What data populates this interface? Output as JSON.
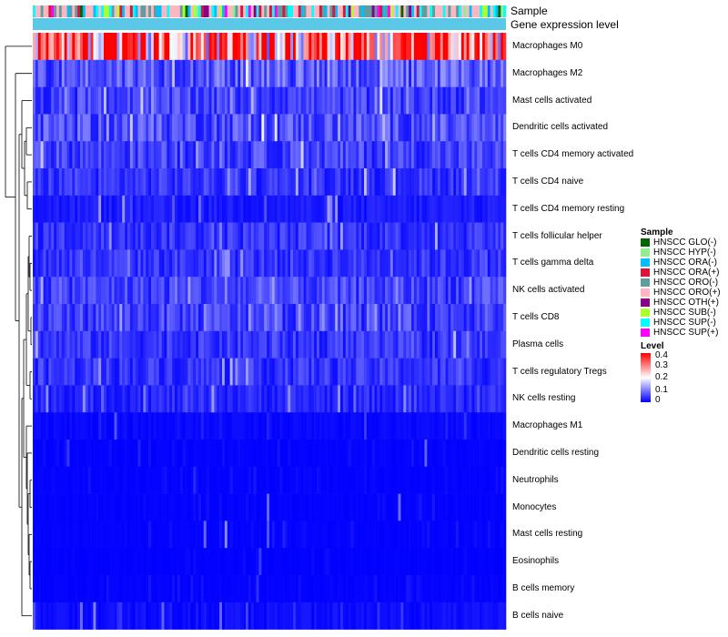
{
  "chart_data": {
    "type": "heatmap",
    "title": "",
    "annotation_labels": {
      "sample": "Sample",
      "gene_expression": "Gene expression level"
    },
    "rows": [
      "Macrophages M0",
      "Macrophages M2",
      "Mast cells activated",
      "Dendritic cells activated",
      "T cells CD4 memory activated",
      "T cells CD4 naive",
      "T cells CD4 memory resting",
      "T cells follicular helper",
      "T cells gamma delta",
      "NK cells activated",
      "T cells CD8",
      "Plasma cells",
      "T cells regulatory  Tregs",
      "NK cells resting",
      "Macrophages M1",
      "Dendritic cells resting",
      "Neutrophils",
      "Monocytes",
      "Mast cells resting",
      "Eosinophils",
      "B cells memory",
      "B cells naive"
    ],
    "row_typical_level": [
      0.28,
      0.07,
      0.05,
      0.06,
      0.05,
      0.04,
      0.02,
      0.04,
      0.04,
      0.05,
      0.05,
      0.04,
      0.04,
      0.03,
      0.03,
      0.01,
      0.01,
      0.01,
      0.01,
      0.005,
      0.01,
      0.05
    ],
    "color_scale": {
      "min": 0,
      "max": 0.4,
      "colors": [
        "#0000ff",
        "#ffffff",
        "#ff0000"
      ],
      "ticks": [
        "0.4",
        "0.3",
        "0.2",
        "0.1",
        "0"
      ]
    },
    "sample_legend": {
      "title": "Sample",
      "items": [
        {
          "label": "HNSCC GLO(-)",
          "color": "#006400"
        },
        {
          "label": "HNSCC HYP(-)",
          "color": "#90ee90"
        },
        {
          "label": "HNSCC ORA(-)",
          "color": "#00bfff"
        },
        {
          "label": "HNSCC ORA(+)",
          "color": "#dc143c"
        },
        {
          "label": "HNSCC ORO(-)",
          "color": "#5f9ea0"
        },
        {
          "label": "HNSCC ORO(+)",
          "color": "#ffb6c1"
        },
        {
          "label": "HNSCC OTH(+)",
          "color": "#8b008b"
        },
        {
          "label": "HNSCC SUB(-)",
          "color": "#adff2f"
        },
        {
          "label": "HNSCC SUP(-)",
          "color": "#00ffff"
        },
        {
          "label": "HNSCC SUP(+)",
          "color": "#ff00ff"
        }
      ]
    },
    "level_legend": {
      "title": "Level"
    },
    "gene_expression_color": "#5bc8e8",
    "n_samples": 180
  }
}
